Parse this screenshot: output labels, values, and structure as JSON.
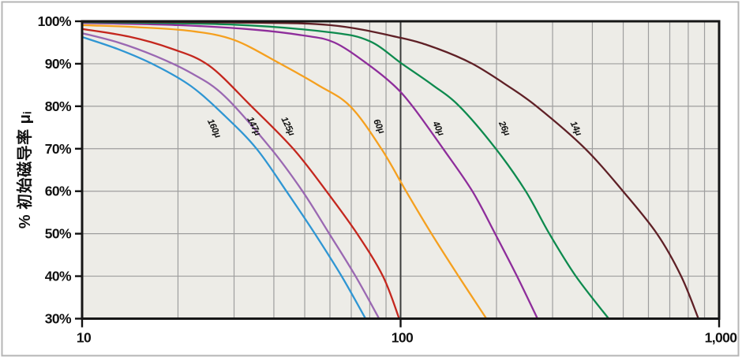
{
  "chart_data": {
    "type": "line",
    "title": "",
    "ylabel": "% 初始磁导率 μᵢ",
    "xlabel": "",
    "x_axis": {
      "scale": "log",
      "min": 10,
      "max": 1000,
      "ticks": [
        10,
        100,
        1000
      ],
      "tick_labels": [
        "10",
        "100",
        "1,000"
      ],
      "minor_gridlines": [
        20,
        30,
        40,
        50,
        60,
        70,
        80,
        90,
        200,
        300,
        400,
        500,
        600,
        700,
        800,
        900
      ],
      "emphasized_gridline": 100
    },
    "y_axis": {
      "min": 30,
      "max": 100,
      "ticks": [
        100,
        90,
        80,
        70,
        60,
        50,
        40,
        30
      ],
      "tick_labels": [
        "100%",
        "90%",
        "80%",
        "70%",
        "60%",
        "50%",
        "40%",
        "30%"
      ],
      "gridlines": [
        90,
        80,
        70,
        60,
        50,
        40
      ]
    },
    "grid": true,
    "legend_position": "inline-rotated-labels",
    "series": [
      {
        "name": "160μ",
        "color": "#2f96d3",
        "label_pos": {
          "x": 25.5,
          "y": 74.5
        },
        "points": [
          [
            10,
            96.3
          ],
          [
            13,
            93.4
          ],
          [
            17,
            89.6
          ],
          [
            22,
            84.7
          ],
          [
            28,
            77.8
          ],
          [
            35.3,
            70
          ],
          [
            43.8,
            60
          ],
          [
            53.8,
            50
          ],
          [
            65.3,
            40
          ],
          [
            77.6,
            30
          ]
        ]
      },
      {
        "name": "147μ",
        "color": "#9a68b2",
        "label_pos": {
          "x": 34,
          "y": 75
        },
        "points": [
          [
            10,
            97.2
          ],
          [
            13,
            95
          ],
          [
            17,
            91.8
          ],
          [
            22,
            87.8
          ],
          [
            28,
            82.4
          ],
          [
            39.2,
            70
          ],
          [
            49.2,
            60
          ],
          [
            59.7,
            50
          ],
          [
            72.2,
            40
          ],
          [
            85.6,
            30
          ]
        ]
      },
      {
        "name": "125μ",
        "color": "#c4271e",
        "label_pos": {
          "x": 43.5,
          "y": 75
        },
        "points": [
          [
            10,
            98.2
          ],
          [
            14,
            96.4
          ],
          [
            19,
            93.6
          ],
          [
            25,
            89.6
          ],
          [
            34,
            80
          ],
          [
            46,
            70
          ],
          [
            58.5,
            60
          ],
          [
            73,
            50
          ],
          [
            88,
            40
          ],
          [
            99,
            30
          ]
        ]
      },
      {
        "name": "60μ",
        "color": "#f5a01f",
        "label_pos": {
          "x": 84,
          "y": 75
        },
        "points": [
          [
            10,
            99.1
          ],
          [
            15,
            98.6
          ],
          [
            22,
            97.7
          ],
          [
            30,
            95.6
          ],
          [
            41.9,
            90
          ],
          [
            55,
            85
          ],
          [
            69.5,
            80
          ],
          [
            87,
            70
          ],
          [
            104,
            60
          ],
          [
            125,
            50
          ],
          [
            152,
            40
          ],
          [
            186,
            30
          ]
        ]
      },
      {
        "name": "40μ",
        "color": "#8e2d9b",
        "label_pos": {
          "x": 129,
          "y": 74.5
        },
        "points": [
          [
            10,
            99.6
          ],
          [
            20,
            99.1
          ],
          [
            35,
            98
          ],
          [
            50,
            96.6
          ],
          [
            62,
            95
          ],
          [
            78.5,
            90
          ],
          [
            95,
            85
          ],
          [
            109,
            80
          ],
          [
            136,
            70
          ],
          [
            168,
            60
          ],
          [
            198,
            50
          ],
          [
            232,
            40
          ],
          [
            269,
            30
          ]
        ]
      },
      {
        "name": "26μ",
        "color": "#0e8a4e",
        "label_pos": {
          "x": 208,
          "y": 74.5
        },
        "points": [
          [
            10,
            99.8
          ],
          [
            30,
            99.2
          ],
          [
            60,
            97.4
          ],
          [
            80,
            95.3
          ],
          [
            101,
            90
          ],
          [
            126,
            85
          ],
          [
            153,
            80
          ],
          [
            199,
            70
          ],
          [
            247,
            60
          ],
          [
            293,
            50
          ],
          [
            355,
            40
          ],
          [
            450,
            30
          ]
        ]
      },
      {
        "name": "14μ",
        "color": "#5f2026",
        "label_pos": {
          "x": 349,
          "y": 74.5
        },
        "points": [
          [
            10,
            99.9
          ],
          [
            30,
            99.7
          ],
          [
            60,
            99.1
          ],
          [
            100,
            96.1
          ],
          [
            130,
            93.6
          ],
          [
            168,
            90
          ],
          [
            215,
            85
          ],
          [
            267,
            80
          ],
          [
            380,
            70
          ],
          [
            499,
            60
          ],
          [
            638,
            50
          ],
          [
            760,
            40
          ],
          [
            861,
            30
          ]
        ]
      }
    ]
  },
  "styles": {
    "plot_bg": "#edece7",
    "grid_color": "#9e9e9e",
    "axis_frame_color": "#161616",
    "emphasized_line_color": "#3c3c3c",
    "tick_color": "#111111",
    "text_color": "#111111",
    "outer_border_color": "#b5b5b5",
    "page_bg": "#ffffff"
  }
}
